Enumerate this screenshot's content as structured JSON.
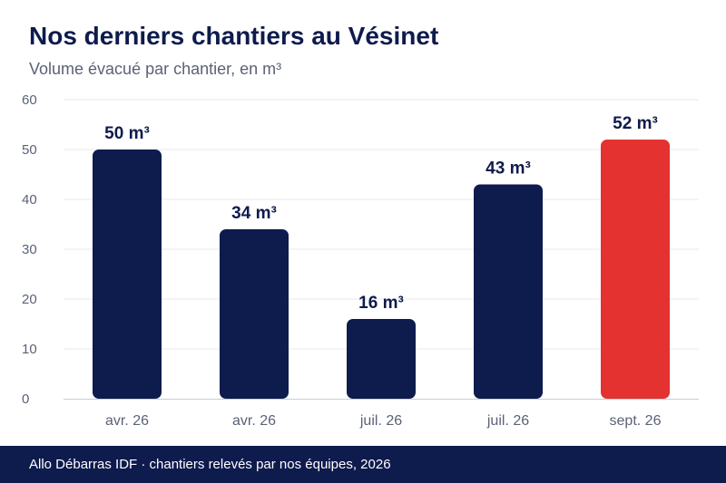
{
  "title": "Nos derniers chantiers au Vésinet",
  "subtitle": "Volume évacué par chantier, en m³",
  "footer": "Allo Débarras IDF · chantiers relevés par nos équipes, 2026",
  "colors": {
    "primary": "#0e1b4d",
    "highlight": "#e3322f",
    "grid": "#e8e9ee",
    "axis_text": "#5a6275"
  },
  "chart_data": {
    "type": "bar",
    "categories": [
      "avr. 26",
      "avr. 26",
      "juil. 26",
      "juil. 26",
      "sept. 26"
    ],
    "values": [
      50,
      34,
      16,
      43,
      52
    ],
    "data_labels": [
      "50 m³",
      "34 m³",
      "16 m³",
      "43 m³",
      "52 m³"
    ],
    "highlight_index": 4,
    "ylim": [
      0,
      60
    ],
    "yticks": [
      0,
      10,
      20,
      30,
      40,
      50,
      60
    ],
    "grid": true,
    "title": "Nos derniers chantiers au Vésinet",
    "subtitle": "Volume évacué par chantier, en m³"
  }
}
